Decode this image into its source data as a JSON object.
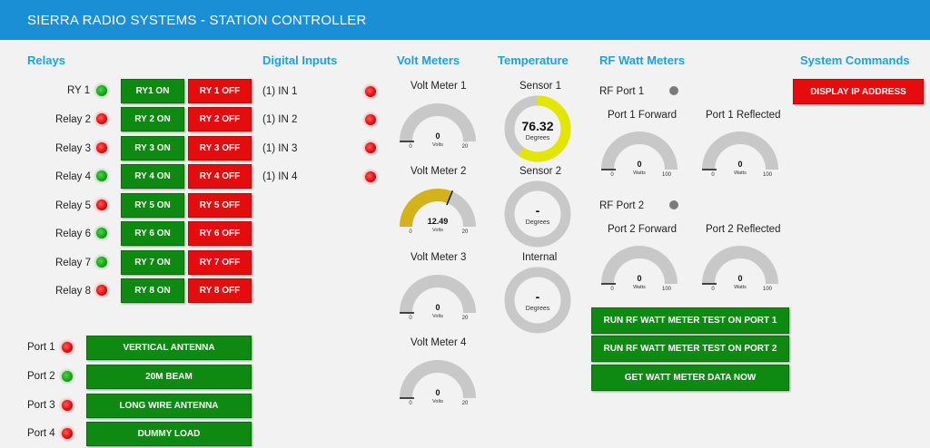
{
  "header": {
    "title": "SIERRA RADIO SYSTEMS - STATION CONTROLLER"
  },
  "sections": {
    "relays": "Relays",
    "digital_inputs": "Digital Inputs",
    "volt_meters": "Volt Meters",
    "temperature": "Temperature",
    "rf_watt_meters": "RF Watt Meters",
    "system_commands": "System Commands"
  },
  "relays": [
    {
      "label": "RY 1",
      "state": "green",
      "on": "RY1 ON",
      "off": "RY 1 OFF"
    },
    {
      "label": "Relay 2",
      "state": "red",
      "on": "RY 2 ON",
      "off": "RY 2 OFF"
    },
    {
      "label": "Relay 3",
      "state": "red",
      "on": "RY 3 ON",
      "off": "RY 3 OFF"
    },
    {
      "label": "Relay 4",
      "state": "green",
      "on": "RY 4 ON",
      "off": "RY 4 OFF"
    },
    {
      "label": "Relay 5",
      "state": "red",
      "on": "RY 5 ON",
      "off": "RY 5 OFF"
    },
    {
      "label": "Relay 6",
      "state": "green",
      "on": "RY 6 ON",
      "off": "RY 6 OFF"
    },
    {
      "label": "Relay 7",
      "state": "green",
      "on": "RY 7 ON",
      "off": "RY 7 OFF"
    },
    {
      "label": "Relay 8",
      "state": "red",
      "on": "RY 8 ON",
      "off": "RY 8 OFF"
    }
  ],
  "ports": [
    {
      "label": "Port 1",
      "state": "red",
      "button": "VERTICAL ANTENNA"
    },
    {
      "label": "Port 2",
      "state": "green",
      "button": "20M BEAM"
    },
    {
      "label": "Port 3",
      "state": "red",
      "button": "LONG WIRE ANTENNA"
    },
    {
      "label": "Port 4",
      "state": "red",
      "button": "DUMMY LOAD"
    }
  ],
  "digital_inputs": [
    {
      "label": "(1) IN 1",
      "state": "red"
    },
    {
      "label": "(1) IN 2",
      "state": "red"
    },
    {
      "label": "(1) IN 3",
      "state": "red"
    },
    {
      "label": "(1) IN 4",
      "state": "red"
    }
  ],
  "volt_meters": [
    {
      "title": "Volt Meter 1",
      "value": "0",
      "unit": "Volts",
      "min": "0",
      "max": "20",
      "fraction": 0
    },
    {
      "title": "Volt Meter 2",
      "value": "12.49",
      "unit": "Volts",
      "min": "0",
      "max": "20",
      "fraction": 0.6245
    },
    {
      "title": "Volt Meter 3",
      "value": "0",
      "unit": "Volts",
      "min": "0",
      "max": "20",
      "fraction": 0
    },
    {
      "title": "Volt Meter 4",
      "value": "0",
      "unit": "Volts",
      "min": "0",
      "max": "20",
      "fraction": 0
    }
  ],
  "temperature": [
    {
      "title": "Sensor 1",
      "value": "76.32",
      "unit": "Degrees",
      "fraction": 0.6
    },
    {
      "title": "Sensor 2",
      "value": "-",
      "unit": "Degrees",
      "fraction": 0
    },
    {
      "title": "Internal",
      "value": "-",
      "unit": "Degrees",
      "fraction": 0
    }
  ],
  "rf": {
    "port1": {
      "label": "RF Port 1",
      "forward_title": "Port 1 Forward",
      "reflected_title": "Port 1 Reflected"
    },
    "port2": {
      "label": "RF Port 2",
      "forward_title": "Port 2 Forward",
      "reflected_title": "Port 2 Reflected"
    },
    "gauge": {
      "value": "0",
      "unit": "Watts",
      "min": "0",
      "max": "100",
      "fraction": 0
    },
    "buttons": {
      "test1": "RUN RF WATT METER TEST ON PORT 1",
      "test2": "RUN RF WATT METER TEST ON PORT 2",
      "data": "GET WATT METER DATA NOW"
    }
  },
  "system": {
    "display_ip": "DISPLAY IP ADDRESS"
  },
  "colors": {
    "header": "#1a8fd6",
    "section_title": "#1da1e0",
    "button_green": "#0e8a12",
    "button_red": "#e40c0c",
    "gauge_track": "#c8c8c8",
    "volt_fill": "#d4b21a",
    "temp_fill": "#e2e600"
  }
}
